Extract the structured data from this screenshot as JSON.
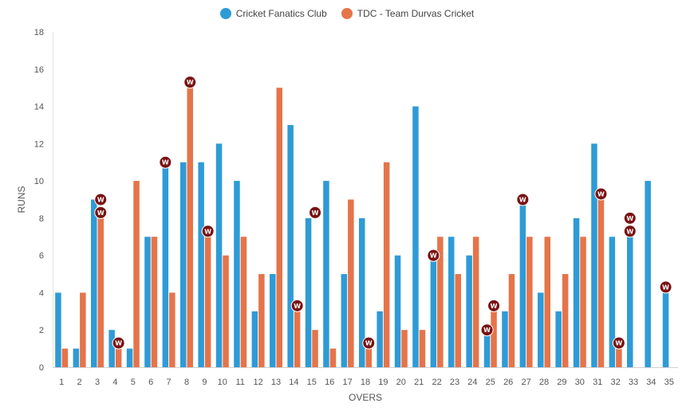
{
  "chart_data": {
    "type": "bar",
    "categories": [
      "1",
      "2",
      "3",
      "4",
      "5",
      "6",
      "7",
      "8",
      "9",
      "10",
      "11",
      "12",
      "13",
      "14",
      "15",
      "16",
      "17",
      "18",
      "19",
      "20",
      "21",
      "22",
      "23",
      "24",
      "25",
      "26",
      "27",
      "28",
      "29",
      "30",
      "31",
      "32",
      "33",
      "34",
      "35"
    ],
    "series": [
      {
        "name": "Cricket Fanatics Club",
        "color": "#2e9bd6",
        "values": [
          4,
          1,
          9,
          2,
          1,
          7,
          11,
          11,
          11,
          12,
          10,
          3,
          5,
          13,
          8,
          10,
          5,
          8,
          3,
          6,
          14,
          6,
          7,
          6,
          2,
          3,
          9,
          4,
          3,
          8,
          12,
          7,
          7,
          10,
          4
        ],
        "wickets": [
          [],
          [],
          [],
          [],
          [],
          [],
          [
            11
          ],
          [],
          [],
          [],
          [],
          [],
          [],
          [],
          [],
          [],
          [],
          [],
          [],
          [],
          [],
          [
            6
          ],
          [],
          [],
          [
            2
          ],
          [],
          [
            9
          ],
          [],
          [],
          [],
          [],
          [],
          [
            8,
            7.3
          ],
          [],
          [
            4.3
          ]
        ]
      },
      {
        "name": "TDC - Team Durvas Cricket",
        "color": "#e5744a",
        "values": [
          1,
          4,
          8,
          1,
          10,
          7,
          4,
          15,
          7,
          6,
          7,
          5,
          15,
          3,
          2,
          1,
          9,
          1,
          11,
          2,
          2,
          7,
          5,
          7,
          3,
          5,
          7,
          7,
          5,
          7,
          9,
          1,
          0,
          0,
          0
        ],
        "wickets": [
          [],
          [],
          [
            9,
            8.3
          ],
          [
            1.3
          ],
          [],
          [],
          [],
          [
            15.3
          ],
          [
            7.3
          ],
          [],
          [],
          [],
          [],
          [
            3.3
          ],
          [
            8.3
          ],
          [],
          [],
          [
            1.3
          ],
          [],
          [],
          [],
          [],
          [],
          [],
          [
            3.3
          ],
          [],
          [],
          [],
          [],
          [],
          [
            9.3
          ],
          [
            1.3
          ],
          [],
          [],
          []
        ]
      }
    ],
    "wicket_marker_label": "W",
    "xlabel": "OVERS",
    "ylabel": "RUNS",
    "ylim": [
      0,
      18
    ],
    "yticks": [
      0,
      2,
      4,
      6,
      8,
      10,
      12,
      14,
      16,
      18
    ],
    "grid": false,
    "legend_position": "top-center"
  }
}
